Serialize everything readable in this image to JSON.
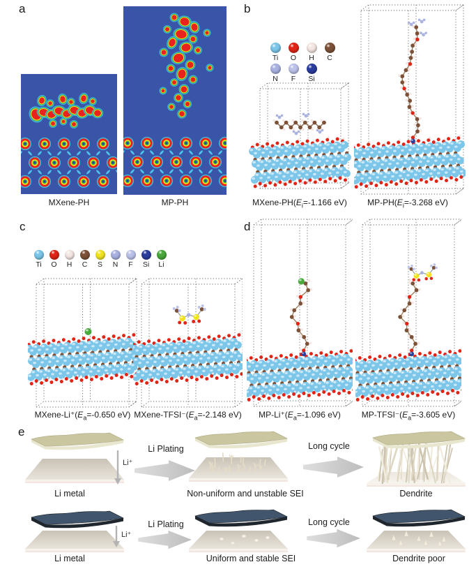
{
  "panels": {
    "a": {
      "label": "a",
      "left_caption": "MXene-PH",
      "right_caption": "MP-PH",
      "colormap": {
        "background": "#3a55a8",
        "high": "#e8231e",
        "mid_high": "#f8ec16",
        "mid": "#3fae53",
        "low": "#3cc0e0",
        "core": "#2c3f9d"
      }
    },
    "b": {
      "label": "b",
      "legend": [
        "Ti",
        "O",
        "H",
        "C",
        "N",
        "F",
        "Si"
      ],
      "left_caption": {
        "pre": "MXene-PH(",
        "sym": "E",
        "sub": "i",
        "post": "=-1.166 eV)"
      },
      "right_caption": {
        "pre": "MP-PH(",
        "sym": "E",
        "sub": "i",
        "post": "=-3.268 eV)"
      }
    },
    "c": {
      "label": "c",
      "legend": [
        "Ti",
        "O",
        "H",
        "C",
        "S",
        "N",
        "F",
        "Si",
        "Li"
      ],
      "left_caption": {
        "pre": "MXene-Li⁺(",
        "sym": "E",
        "sub": "a",
        "post": "=-0.650 eV)"
      },
      "right_caption": {
        "pre": "MXene-TFSI⁻(",
        "sym": "E",
        "sub": "a",
        "post": "=-2.148 eV)"
      }
    },
    "d": {
      "label": "d",
      "left_caption": {
        "pre": "MP-Li⁺(",
        "sym": "E",
        "sub": "a",
        "post": "=-1.096 eV)"
      },
      "right_caption": {
        "pre": "MP-TFSI⁻(",
        "sym": "E",
        "sub": "a",
        "post": "=-3.605 eV)"
      }
    },
    "e": {
      "label": "e",
      "rows": [
        {
          "ion": "Li⁺",
          "step1": "Li Plating",
          "step2": "Long cycle",
          "caption1": "Li metal",
          "caption2": "Non-uniform and unstable SEI",
          "caption3": "Dendrite"
        },
        {
          "ion": "Li⁺",
          "step1": "Li Plating",
          "step2": "Long cycle",
          "caption1": "Li metal",
          "caption2": "Uniform and stable SEI",
          "caption3": "Dendrite poor"
        }
      ],
      "colors": {
        "separator_cream": "#cac7a0",
        "separator_dark": "#41566c",
        "plate": "#d9d2c6",
        "dendrite": "#e8e1cd",
        "arrow": "#c9c9c9"
      }
    }
  },
  "atom_colors": {
    "Ti": "#7cc6ea",
    "O": "#e02517",
    "H": "#f4e6e2",
    "C": "#7d5138",
    "S": "#f0e421",
    "N": "#a9b2e0",
    "F": "#bcc3ea",
    "Si": "#2b3d9e",
    "Li": "#4aa93c"
  }
}
